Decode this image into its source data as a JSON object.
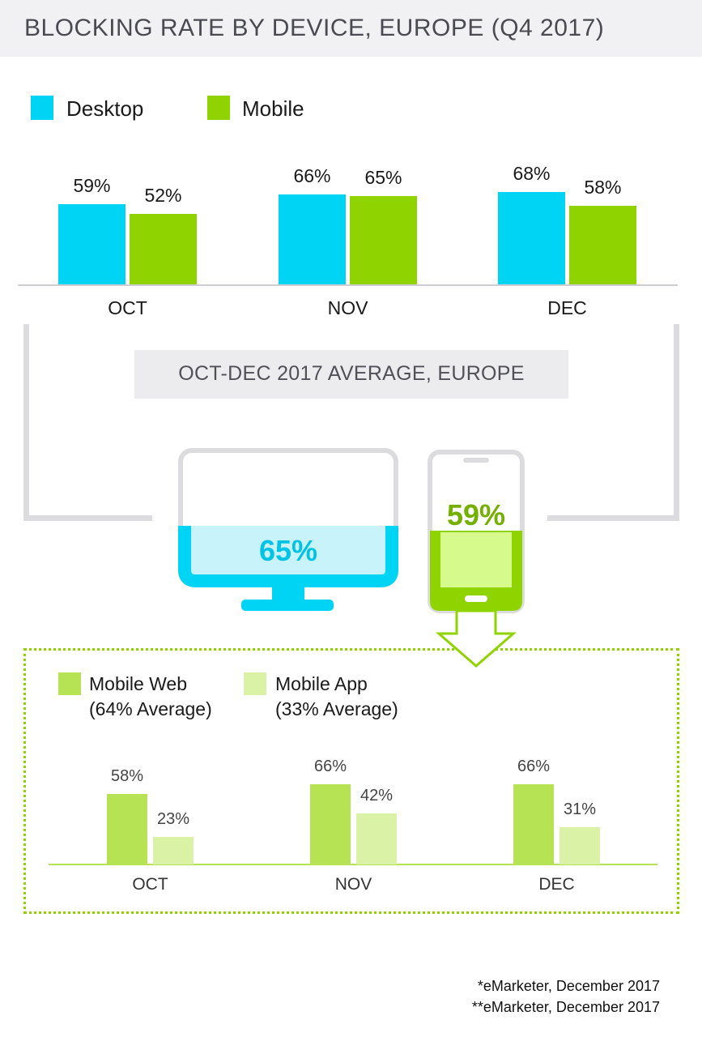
{
  "title": "BLOCKING RATE BY DEVICE, EUROPE (Q4 2017)",
  "colors": {
    "desktop": "#00d4f5",
    "mobile": "#8fd400",
    "mobile_web": "#b5e353",
    "mobile_app": "#d9f2a6",
    "desktop_fill": "#c9f3fb",
    "mobile_screen_fill": "#d6fa8c",
    "frame_gray": "#dcdcdf"
  },
  "average_section": {
    "label": "OCT-DEC 2017 AVERAGE, EUROPE",
    "desktop_value": "65%",
    "mobile_value": "59%",
    "desktop_fraction": 0.65,
    "mobile_fraction": 0.59,
    "desktop_icon": "desktop-monitor-icon",
    "mobile_icon": "smartphone-icon",
    "arrow_icon": "down-arrow-icon"
  },
  "sources": [
    "*eMarketer, December 2017",
    "**eMarketer, December 2017"
  ],
  "chart_data": [
    {
      "type": "bar",
      "categories": [
        "OCT",
        "NOV",
        "DEC"
      ],
      "series": [
        {
          "name": "Desktop",
          "values": [
            59,
            66,
            68
          ],
          "labels": [
            "59%",
            "66%",
            "68%"
          ]
        },
        {
          "name": "Mobile",
          "values": [
            52,
            65,
            58
          ],
          "labels": [
            "52%",
            "65%",
            "58%"
          ]
        }
      ],
      "legend": "top-left",
      "grid": false
    },
    {
      "type": "bar",
      "categories": [
        "OCT",
        "NOV",
        "DEC"
      ],
      "series": [
        {
          "name": "Mobile Web",
          "legend_line2": "(64% Average)",
          "values": [
            58,
            66,
            66
          ],
          "labels": [
            "58%",
            "66%",
            "66%"
          ]
        },
        {
          "name": "Mobile App",
          "legend_line2": "(33% Average)",
          "values": [
            23,
            42,
            31
          ],
          "labels": [
            "23%",
            "42%",
            "31%"
          ]
        }
      ],
      "legend": "top-left",
      "grid": false
    }
  ]
}
